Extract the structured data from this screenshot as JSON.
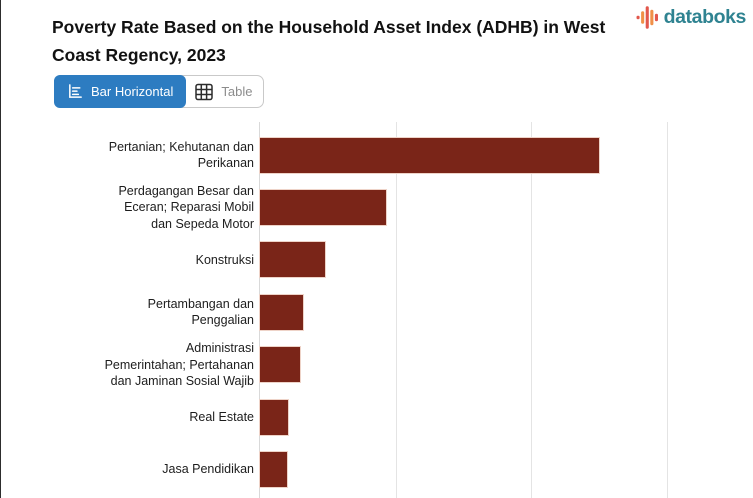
{
  "header": {
    "title": "Poverty Rate Based on the Household Asset Index (ADHB) in West Coast Regency, 2023",
    "brand": "databoks"
  },
  "toolbar": {
    "bar_horizontal_label": "Bar Horizontal",
    "table_label": "Table"
  },
  "icons": {
    "brand": "pulse-bars-icon",
    "bar_horizontal": "bar-chart-horizontal-icon",
    "table": "table-grid-icon"
  },
  "colors": {
    "bar": "#7a2518",
    "active_button": "#2d7cc1",
    "brand_text": "#2f8391",
    "brand_red": "#e2574c",
    "brand_orange": "#f09048",
    "gridline": "#e4e4e4"
  },
  "chart_data": {
    "type": "bar",
    "orientation": "horizontal",
    "title": "Poverty Rate Based on the Household Asset Index (ADHB) in West Coast Regency, 2023",
    "categories": [
      "Pertanian; Kehutanan dan Perikanan",
      "Perdagangan Besar dan Eceran; Reparasi Mobil dan Sepeda Motor",
      "Konstruksi",
      "Pertambangan dan Penggalian",
      "Administrasi Pemerintahan; Pertahanan dan Jaminan Sosial Wajib",
      "Real Estate",
      "Jasa Pendidikan"
    ],
    "values": [
      25.1,
      9.4,
      4.9,
      3.3,
      3.1,
      2.2,
      2.1
    ],
    "values_note": "estimated from unlabeled gridlines (step = 10)",
    "xlabel": "",
    "ylabel": "",
    "xlim": [
      0,
      36.4
    ],
    "gridline_step": 10,
    "grid": true,
    "legend": false,
    "bar_color": "#7a2518"
  }
}
